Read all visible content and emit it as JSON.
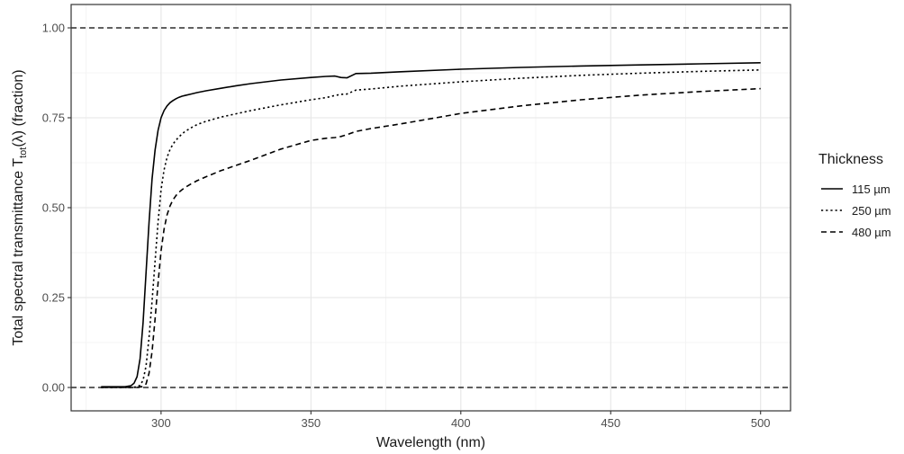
{
  "chart_data": {
    "type": "line",
    "xlabel": "Wavelength (nm)",
    "ylabel": {
      "prefix": "Total spectral transmittance  T",
      "subscript": "tot",
      "suffix": "(λ)  (fraction)"
    },
    "xlim": [
      270,
      510
    ],
    "ylim": [
      -0.065,
      1.065
    ],
    "x_ticks": [
      300,
      350,
      400,
      450,
      500
    ],
    "x_tick_labels": [
      "300",
      "350",
      "400",
      "450",
      "500"
    ],
    "y_ticks": [
      0,
      0.25,
      0.5,
      0.75,
      1.0
    ],
    "y_tick_labels": [
      "0.00",
      "0.25",
      "0.50",
      "0.75",
      "1.00"
    ],
    "grid": true,
    "legend": {
      "title": "Thickness",
      "position": "right",
      "entries": [
        "115 µm",
        "250 µm",
        "480 µm"
      ]
    },
    "reference_lines": [
      {
        "y": 1.0,
        "style": "dashed"
      },
      {
        "y": 0.0,
        "style": "dashed"
      }
    ],
    "series": [
      {
        "name": "115 µm",
        "style": "solid",
        "x": [
          280,
          288,
          290,
          291,
          292,
          293,
          294,
          295,
          296,
          297,
          298,
          299,
          300,
          301,
          302,
          303,
          304,
          305,
          306,
          307,
          308,
          310,
          312,
          315,
          320,
          325,
          330,
          340,
          350,
          355,
          358,
          360,
          362,
          365,
          370,
          380,
          400,
          420,
          440,
          460,
          480,
          500
        ],
        "y": [
          0.002,
          0.002,
          0.005,
          0.012,
          0.03,
          0.08,
          0.18,
          0.32,
          0.46,
          0.58,
          0.66,
          0.715,
          0.75,
          0.77,
          0.783,
          0.792,
          0.798,
          0.803,
          0.807,
          0.81,
          0.812,
          0.816,
          0.82,
          0.825,
          0.832,
          0.839,
          0.845,
          0.855,
          0.862,
          0.865,
          0.866,
          0.862,
          0.861,
          0.873,
          0.874,
          0.878,
          0.885,
          0.89,
          0.894,
          0.897,
          0.9,
          0.903
        ]
      },
      {
        "name": "250 µm",
        "style": "dotted",
        "x": [
          280,
          290,
          292,
          293,
          294,
          295,
          296,
          297,
          298,
          299,
          300,
          301,
          302,
          303,
          304,
          305,
          306,
          307,
          308,
          310,
          312,
          315,
          320,
          330,
          340,
          350,
          355,
          358,
          360,
          362,
          365,
          370,
          380,
          400,
          420,
          440,
          460,
          480,
          500
        ],
        "y": [
          0.0,
          0.0,
          0.002,
          0.006,
          0.02,
          0.06,
          0.14,
          0.24,
          0.35,
          0.46,
          0.55,
          0.605,
          0.64,
          0.662,
          0.677,
          0.688,
          0.697,
          0.705,
          0.712,
          0.722,
          0.731,
          0.74,
          0.752,
          0.77,
          0.786,
          0.8,
          0.806,
          0.812,
          0.815,
          0.816,
          0.827,
          0.83,
          0.838,
          0.85,
          0.86,
          0.868,
          0.874,
          0.879,
          0.883
        ]
      },
      {
        "name": "480 µm",
        "style": "dashed",
        "x": [
          280,
          292,
          294,
          295,
          296,
          297,
          298,
          299,
          300,
          301,
          302,
          303,
          304,
          305,
          306,
          307,
          308,
          310,
          312,
          315,
          320,
          330,
          340,
          350,
          355,
          358,
          360,
          362,
          365,
          370,
          380,
          400,
          420,
          440,
          460,
          480,
          500
        ],
        "y": [
          0.0,
          0.0,
          0.003,
          0.01,
          0.04,
          0.1,
          0.19,
          0.29,
          0.38,
          0.44,
          0.48,
          0.505,
          0.522,
          0.534,
          0.543,
          0.55,
          0.556,
          0.566,
          0.575,
          0.586,
          0.603,
          0.632,
          0.663,
          0.687,
          0.693,
          0.695,
          0.698,
          0.703,
          0.712,
          0.72,
          0.733,
          0.762,
          0.783,
          0.8,
          0.813,
          0.823,
          0.831
        ]
      }
    ]
  }
}
